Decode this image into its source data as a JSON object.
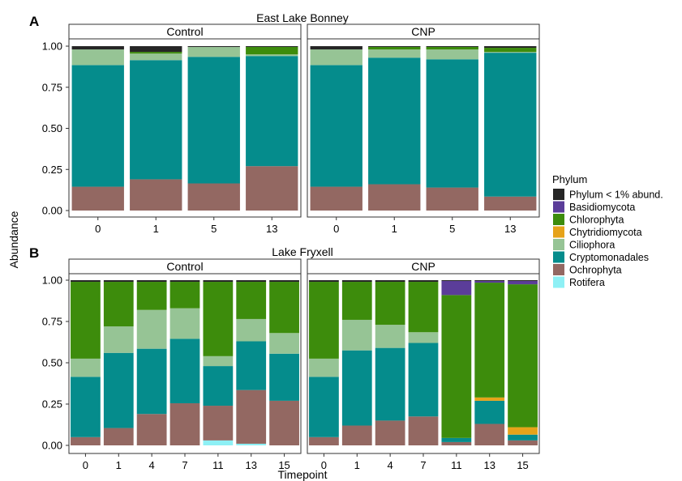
{
  "axes": {
    "y_label": "Abundance",
    "x_label": "Timepoint"
  },
  "legend": {
    "title": "Phylum",
    "entries": [
      {
        "name": "Phylum < 1% abund.",
        "color": "#262626"
      },
      {
        "name": "Basidiomycota",
        "color": "#5b3d99"
      },
      {
        "name": "Chlorophyta",
        "color": "#3d8c0c"
      },
      {
        "name": "Chytridiomycota",
        "color": "#e6a31a"
      },
      {
        "name": "Ciliophora",
        "color": "#96c495"
      },
      {
        "name": "Cryptomonadales",
        "color": "#058c8c"
      },
      {
        "name": "Ochrophyta",
        "color": "#936862"
      },
      {
        "name": "Rotifera",
        "color": "#8ef0f5"
      }
    ]
  },
  "chart_data": [
    {
      "type": "bar",
      "stacked": true,
      "panel_letter": "A",
      "title": "East Lake Bonney",
      "ylim": [
        0,
        1
      ],
      "yticks": [
        "0.00",
        "0.25",
        "0.50",
        "0.75",
        "1.00"
      ],
      "facets": [
        {
          "label": "Control",
          "categories": [
            "0",
            "1",
            "5",
            "13"
          ],
          "stacks": [
            [
              [
                "Ochrophyta",
                0.145
              ],
              [
                "Cryptomonadales",
                0.74
              ],
              [
                "Ciliophora",
                0.095
              ],
              [
                "Phylum < 1% abund.",
                0.02
              ]
            ],
            [
              [
                "Ochrophyta",
                0.19
              ],
              [
                "Cryptomonadales",
                0.725
              ],
              [
                "Ciliophora",
                0.04
              ],
              [
                "Chlorophyta",
                0.01
              ],
              [
                "Phylum < 1% abund.",
                0.035
              ]
            ],
            [
              [
                "Ochrophyta",
                0.165
              ],
              [
                "Cryptomonadales",
                0.77
              ],
              [
                "Ciliophora",
                0.06
              ],
              [
                "Phylum < 1% abund.",
                0.005
              ]
            ],
            [
              [
                "Ochrophyta",
                0.27
              ],
              [
                "Cryptomonadales",
                0.67
              ],
              [
                "Ciliophora",
                0.01
              ],
              [
                "Chlorophyta",
                0.045
              ],
              [
                "Phylum < 1% abund.",
                0.005
              ]
            ]
          ]
        },
        {
          "label": "CNP",
          "categories": [
            "0",
            "1",
            "5",
            "13"
          ],
          "stacks": [
            [
              [
                "Ochrophyta",
                0.145
              ],
              [
                "Cryptomonadales",
                0.74
              ],
              [
                "Ciliophora",
                0.095
              ],
              [
                "Phylum < 1% abund.",
                0.02
              ]
            ],
            [
              [
                "Ochrophyta",
                0.16
              ],
              [
                "Cryptomonadales",
                0.77
              ],
              [
                "Ciliophora",
                0.05
              ],
              [
                "Chlorophyta",
                0.015
              ],
              [
                "Phylum < 1% abund.",
                0.005
              ]
            ],
            [
              [
                "Ochrophyta",
                0.14
              ],
              [
                "Cryptomonadales",
                0.78
              ],
              [
                "Ciliophora",
                0.06
              ],
              [
                "Chlorophyta",
                0.015
              ],
              [
                "Phylum < 1% abund.",
                0.005
              ]
            ],
            [
              [
                "Ochrophyta",
                0.085
              ],
              [
                "Cryptomonadales",
                0.875
              ],
              [
                "Ciliophora",
                0.005
              ],
              [
                "Chlorophyta",
                0.025
              ],
              [
                "Phylum < 1% abund.",
                0.01
              ]
            ]
          ]
        }
      ]
    },
    {
      "type": "bar",
      "stacked": true,
      "panel_letter": "B",
      "title": "Lake Fryxell",
      "ylim": [
        0,
        1
      ],
      "yticks": [
        "0.00",
        "0.25",
        "0.50",
        "0.75",
        "1.00"
      ],
      "facets": [
        {
          "label": "Control",
          "categories": [
            "0",
            "1",
            "4",
            "7",
            "11",
            "13",
            "15"
          ],
          "stacks": [
            [
              [
                "Ochrophyta",
                0.05
              ],
              [
                "Cryptomonadales",
                0.365
              ],
              [
                "Ciliophora",
                0.11
              ],
              [
                "Chlorophyta",
                0.465
              ],
              [
                "Phylum < 1% abund.",
                0.01
              ]
            ],
            [
              [
                "Ochrophyta",
                0.105
              ],
              [
                "Cryptomonadales",
                0.455
              ],
              [
                "Ciliophora",
                0.16
              ],
              [
                "Chlorophyta",
                0.27
              ],
              [
                "Phylum < 1% abund.",
                0.01
              ]
            ],
            [
              [
                "Ochrophyta",
                0.19
              ],
              [
                "Cryptomonadales",
                0.395
              ],
              [
                "Ciliophora",
                0.235
              ],
              [
                "Chlorophyta",
                0.17
              ],
              [
                "Phylum < 1% abund.",
                0.01
              ]
            ],
            [
              [
                "Ochrophyta",
                0.255
              ],
              [
                "Cryptomonadales",
                0.39
              ],
              [
                "Ciliophora",
                0.185
              ],
              [
                "Chlorophyta",
                0.16
              ],
              [
                "Phylum < 1% abund.",
                0.01
              ]
            ],
            [
              [
                "Rotifera",
                0.03
              ],
              [
                "Ochrophyta",
                0.21
              ],
              [
                "Cryptomonadales",
                0.24
              ],
              [
                "Ciliophora",
                0.06
              ],
              [
                "Chlorophyta",
                0.45
              ],
              [
                "Phylum < 1% abund.",
                0.01
              ]
            ],
            [
              [
                "Rotifera",
                0.01
              ],
              [
                "Ochrophyta",
                0.325
              ],
              [
                "Cryptomonadales",
                0.295
              ],
              [
                "Ciliophora",
                0.135
              ],
              [
                "Chlorophyta",
                0.225
              ],
              [
                "Phylum < 1% abund.",
                0.01
              ]
            ],
            [
              [
                "Ochrophyta",
                0.27
              ],
              [
                "Cryptomonadales",
                0.285
              ],
              [
                "Ciliophora",
                0.125
              ],
              [
                "Chlorophyta",
                0.31
              ],
              [
                "Phylum < 1% abund.",
                0.01
              ]
            ]
          ]
        },
        {
          "label": "CNP",
          "categories": [
            "0",
            "1",
            "4",
            "7",
            "11",
            "13",
            "15"
          ],
          "stacks": [
            [
              [
                "Ochrophyta",
                0.05
              ],
              [
                "Cryptomonadales",
                0.365
              ],
              [
                "Ciliophora",
                0.11
              ],
              [
                "Chlorophyta",
                0.465
              ],
              [
                "Phylum < 1% abund.",
                0.01
              ]
            ],
            [
              [
                "Ochrophyta",
                0.12
              ],
              [
                "Cryptomonadales",
                0.455
              ],
              [
                "Ciliophora",
                0.185
              ],
              [
                "Chlorophyta",
                0.23
              ],
              [
                "Phylum < 1% abund.",
                0.01
              ]
            ],
            [
              [
                "Ochrophyta",
                0.15
              ],
              [
                "Cryptomonadales",
                0.44
              ],
              [
                "Ciliophora",
                0.14
              ],
              [
                "Chlorophyta",
                0.26
              ],
              [
                "Phylum < 1% abund.",
                0.01
              ]
            ],
            [
              [
                "Ochrophyta",
                0.175
              ],
              [
                "Cryptomonadales",
                0.445
              ],
              [
                "Ciliophora",
                0.065
              ],
              [
                "Chlorophyta",
                0.305
              ],
              [
                "Phylum < 1% abund.",
                0.01
              ]
            ],
            [
              [
                "Ochrophyta",
                0.02
              ],
              [
                "Cryptomonadales",
                0.025
              ],
              [
                "Chlorophyta",
                0.865
              ],
              [
                "Basidiomycota",
                0.085
              ],
              [
                "Phylum < 1% abund.",
                0.005
              ]
            ],
            [
              [
                "Ochrophyta",
                0.13
              ],
              [
                "Cryptomonadales",
                0.14
              ],
              [
                "Chytridiomycota",
                0.02
              ],
              [
                "Chlorophyta",
                0.695
              ],
              [
                "Basidiomycota",
                0.01
              ],
              [
                "Phylum < 1% abund.",
                0.005
              ]
            ],
            [
              [
                "Ochrophyta",
                0.03
              ],
              [
                "Cryptomonadales",
                0.035
              ],
              [
                "Chytridiomycota",
                0.045
              ],
              [
                "Chlorophyta",
                0.865
              ],
              [
                "Basidiomycota",
                0.02
              ],
              [
                "Phylum < 1% abund.",
                0.005
              ]
            ]
          ]
        }
      ]
    }
  ]
}
